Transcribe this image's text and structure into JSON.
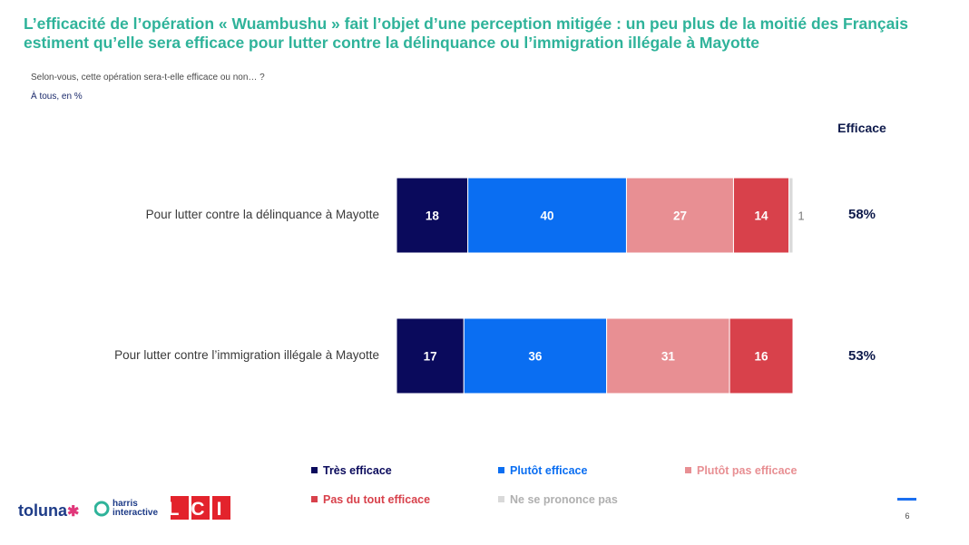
{
  "title": "L’efficacité de l’opération « Wuambushu » fait l’objet d’une perception mitigée : un peu plus de la moitié des Français estiment qu’elle sera efficace pour lutter contre la délinquance ou l’immigration illégale à Mayotte",
  "question": "Selon-vous, cette opération sera-t-elle efficace ou non… ?",
  "base": "À tous, en %",
  "efficace_header": "Efficace",
  "colors": {
    "tres_efficace": "#0a0a5c",
    "plutot_efficace": "#0a6ef2",
    "plutot_pas_efficace": "#e88f93",
    "pas_du_tout_efficace": "#d8414b",
    "ne_se_prononce_pas": "#d9d9d9",
    "title": "#2fb39a"
  },
  "chart_data": {
    "type": "bar",
    "orientation": "horizontal",
    "stacked": true,
    "categories": [
      "Pour lutter contre la délinquance à Mayotte",
      "Pour lutter contre l’immigration illégale à Mayotte"
    ],
    "series": [
      {
        "name": "Très efficace",
        "values": [
          18,
          17
        ],
        "labels": [
          "18",
          "17"
        ]
      },
      {
        "name": "Plutôt efficace",
        "values": [
          40,
          36
        ],
        "labels": [
          "40",
          "36"
        ]
      },
      {
        "name": "Plutôt pas efficace",
        "values": [
          27,
          31
        ],
        "labels": [
          "27",
          "31"
        ]
      },
      {
        "name": "Pas du tout efficace",
        "values": [
          14,
          16
        ],
        "labels": [
          "14",
          "16"
        ]
      },
      {
        "name": "Ne se prononce pas",
        "values": [
          1,
          0
        ],
        "labels": [
          "1",
          ""
        ]
      }
    ],
    "efficace_totals": [
      "58%",
      "53%"
    ],
    "xlim": [
      0,
      100
    ],
    "legend_position": "bottom",
    "grid": false
  },
  "footer": {
    "logos": {
      "toluna": "toluna",
      "harris_line1": "harris",
      "harris_line2": "interactive",
      "lci": "LCI"
    },
    "page_number": "6"
  }
}
